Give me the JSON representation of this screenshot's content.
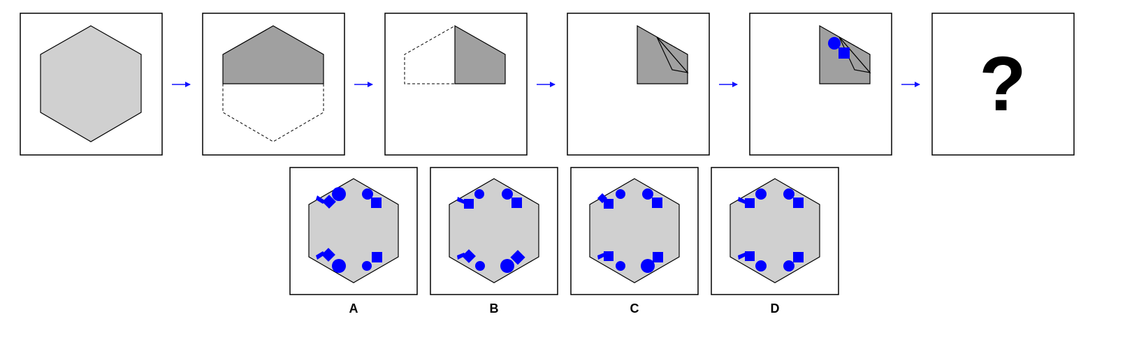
{
  "puzzle": {
    "question_mark": "?",
    "arrow_color": "#1010ff",
    "shape_fill": "#d0d0d0",
    "folded_fill": "#a0a0a0",
    "mark_color": "#0000ff"
  },
  "options": [
    {
      "label": "A"
    },
    {
      "label": "B"
    },
    {
      "label": "C"
    },
    {
      "label": "D"
    }
  ]
}
